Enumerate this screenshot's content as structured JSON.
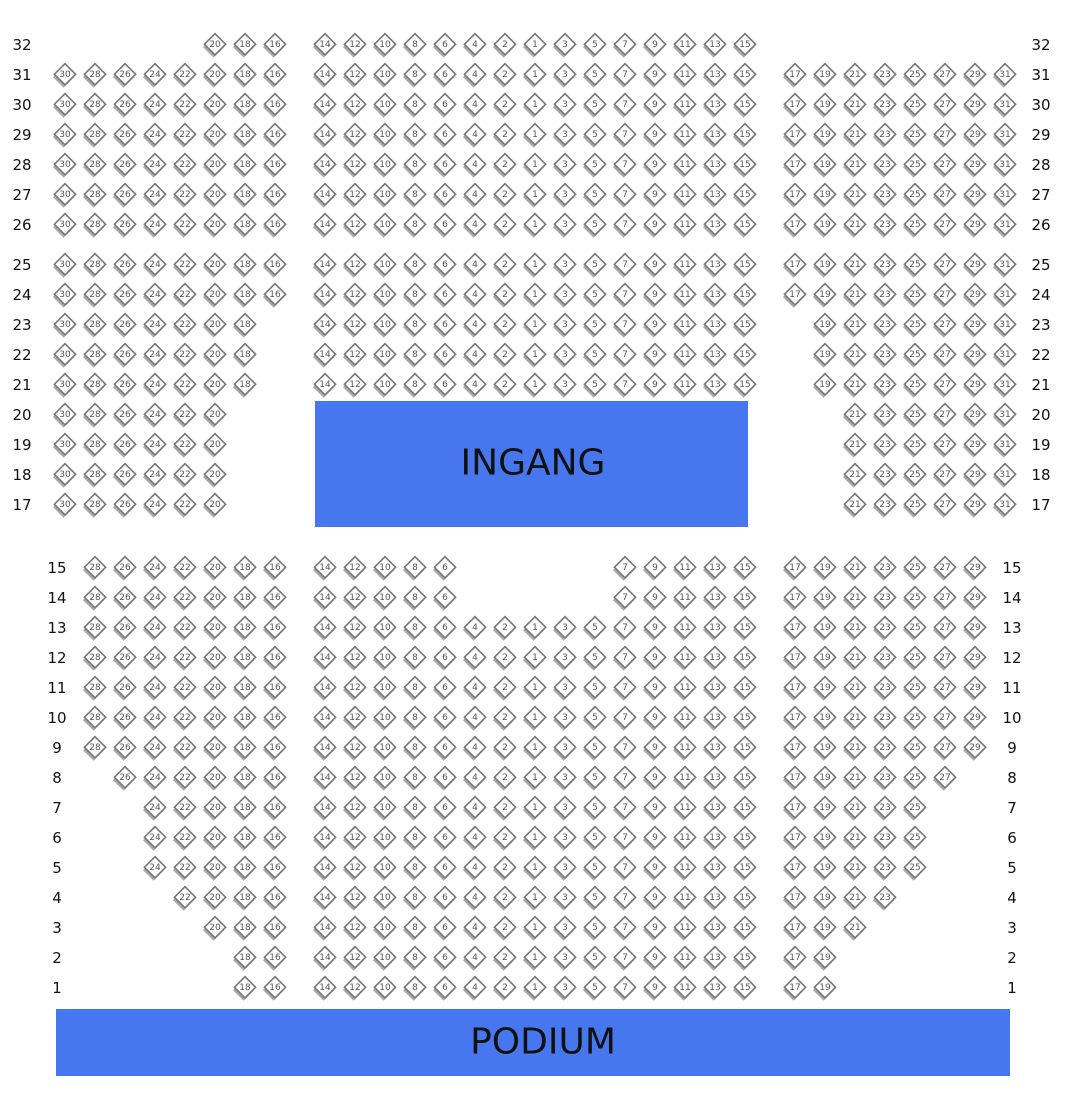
{
  "blocks": [
    {
      "rows": [
        {
          "label": "32",
          "left": [
            20,
            18,
            16
          ],
          "center": [
            14,
            12,
            10,
            8,
            6,
            4,
            2,
            1,
            3,
            5,
            7,
            9,
            11,
            13,
            15
          ],
          "right": []
        },
        {
          "label": "31",
          "left": [
            30,
            28,
            26,
            24,
            22,
            20,
            18,
            16
          ],
          "center": [
            14,
            12,
            10,
            8,
            6,
            4,
            2,
            1,
            3,
            5,
            7,
            9,
            11,
            13,
            15
          ],
          "right": [
            17,
            19,
            21,
            23,
            25,
            27,
            29,
            31
          ]
        },
        {
          "label": "30",
          "left": [
            30,
            28,
            26,
            24,
            22,
            20,
            18,
            16
          ],
          "center": [
            14,
            12,
            10,
            8,
            6,
            4,
            2,
            1,
            3,
            5,
            7,
            9,
            11,
            13,
            15
          ],
          "right": [
            17,
            19,
            21,
            23,
            25,
            27,
            29,
            31
          ]
        },
        {
          "label": "29",
          "left": [
            30,
            28,
            26,
            24,
            22,
            20,
            18,
            16
          ],
          "center": [
            14,
            12,
            10,
            8,
            6,
            4,
            2,
            1,
            3,
            5,
            7,
            9,
            11,
            13,
            15
          ],
          "right": [
            17,
            19,
            21,
            23,
            25,
            27,
            29,
            31
          ]
        },
        {
          "label": "28",
          "left": [
            30,
            28,
            26,
            24,
            22,
            20,
            18,
            16
          ],
          "center": [
            14,
            12,
            10,
            8,
            6,
            4,
            2,
            1,
            3,
            5,
            7,
            9,
            11,
            13,
            15
          ],
          "right": [
            17,
            19,
            21,
            23,
            25,
            27,
            29,
            31
          ]
        },
        {
          "label": "27",
          "left": [
            30,
            28,
            26,
            24,
            22,
            20,
            18,
            16
          ],
          "center": [
            14,
            12,
            10,
            8,
            6,
            4,
            2,
            1,
            3,
            5,
            7,
            9,
            11,
            13,
            15
          ],
          "right": [
            17,
            19,
            21,
            23,
            25,
            27,
            29,
            31
          ]
        },
        {
          "label": "26",
          "left": [
            30,
            28,
            26,
            24,
            22,
            20,
            18,
            16
          ],
          "center": [
            14,
            12,
            10,
            8,
            6,
            4,
            2,
            1,
            3,
            5,
            7,
            9,
            11,
            13,
            15
          ],
          "right": [
            17,
            19,
            21,
            23,
            25,
            27,
            29,
            31
          ]
        }
      ]
    },
    {
      "rows": [
        {
          "label": "25",
          "left": [
            30,
            28,
            26,
            24,
            22,
            20,
            18,
            16
          ],
          "center": [
            14,
            12,
            10,
            8,
            6,
            4,
            2,
            1,
            3,
            5,
            7,
            9,
            11,
            13,
            15
          ],
          "right": [
            17,
            19,
            21,
            23,
            25,
            27,
            29,
            31
          ]
        },
        {
          "label": "24",
          "left": [
            30,
            28,
            26,
            24,
            22,
            20,
            18,
            16
          ],
          "center": [
            14,
            12,
            10,
            8,
            6,
            4,
            2,
            1,
            3,
            5,
            7,
            9,
            11,
            13,
            15
          ],
          "right": [
            17,
            19,
            21,
            23,
            25,
            27,
            29,
            31
          ]
        },
        {
          "label": "23",
          "left": [
            30,
            28,
            26,
            24,
            22,
            20,
            18
          ],
          "center": [
            14,
            12,
            10,
            8,
            6,
            4,
            2,
            1,
            3,
            5,
            7,
            9,
            11,
            13,
            15
          ],
          "right": [
            19,
            21,
            23,
            25,
            27,
            29,
            31
          ]
        },
        {
          "label": "22",
          "left": [
            30,
            28,
            26,
            24,
            22,
            20,
            18
          ],
          "center": [
            14,
            12,
            10,
            8,
            6,
            4,
            2,
            1,
            3,
            5,
            7,
            9,
            11,
            13,
            15
          ],
          "right": [
            19,
            21,
            23,
            25,
            27,
            29,
            31
          ]
        },
        {
          "label": "21",
          "left": [
            30,
            28,
            26,
            24,
            22,
            20,
            18
          ],
          "center": [
            14,
            12,
            10,
            8,
            6,
            4,
            2,
            1,
            3,
            5,
            7,
            9,
            11,
            13,
            15
          ],
          "right": [
            19,
            21,
            23,
            25,
            27,
            29,
            31
          ]
        },
        {
          "label": "20",
          "left": [
            30,
            28,
            26,
            24,
            22,
            20
          ],
          "center": [],
          "right": [
            21,
            23,
            25,
            27,
            29,
            31
          ]
        },
        {
          "label": "19",
          "left": [
            30,
            28,
            26,
            24,
            22,
            20
          ],
          "center": [],
          "right": [
            21,
            23,
            25,
            27,
            29,
            31
          ]
        },
        {
          "label": "18",
          "left": [
            30,
            28,
            26,
            24,
            22,
            20
          ],
          "center": [],
          "right": [
            21,
            23,
            25,
            27,
            29,
            31
          ]
        },
        {
          "label": "17",
          "left": [
            30,
            28,
            26,
            24,
            22,
            20
          ],
          "center": [],
          "right": [
            21,
            23,
            25,
            27,
            29,
            31
          ]
        }
      ]
    },
    {
      "rows": [
        {
          "label": "15",
          "left": [
            28,
            26,
            24,
            22,
            20,
            18,
            16
          ],
          "center": [
            14,
            12,
            10,
            8,
            6,
            7,
            9,
            11,
            13,
            15
          ],
          "right": [
            17,
            19,
            21,
            23,
            25,
            27,
            29
          ]
        },
        {
          "label": "14",
          "left": [
            28,
            26,
            24,
            22,
            20,
            18,
            16
          ],
          "center": [
            14,
            12,
            10,
            8,
            6,
            7,
            9,
            11,
            13,
            15
          ],
          "right": [
            17,
            19,
            21,
            23,
            25,
            27,
            29
          ]
        },
        {
          "label": "13",
          "left": [
            28,
            26,
            24,
            22,
            20,
            18,
            16
          ],
          "center": [
            14,
            12,
            10,
            8,
            6,
            4,
            2,
            1,
            3,
            5,
            7,
            9,
            11,
            13,
            15
          ],
          "right": [
            17,
            19,
            21,
            23,
            25,
            27,
            29
          ]
        },
        {
          "label": "12",
          "left": [
            28,
            26,
            24,
            22,
            20,
            18,
            16
          ],
          "center": [
            14,
            12,
            10,
            8,
            6,
            4,
            2,
            1,
            3,
            5,
            7,
            9,
            11,
            13,
            15
          ],
          "right": [
            17,
            19,
            21,
            23,
            25,
            27,
            29
          ]
        },
        {
          "label": "11",
          "left": [
            28,
            26,
            24,
            22,
            20,
            18,
            16
          ],
          "center": [
            14,
            12,
            10,
            8,
            6,
            4,
            2,
            1,
            3,
            5,
            7,
            9,
            11,
            13,
            15
          ],
          "right": [
            17,
            19,
            21,
            23,
            25,
            27,
            29
          ]
        },
        {
          "label": "10",
          "left": [
            28,
            26,
            24,
            22,
            20,
            18,
            16
          ],
          "center": [
            14,
            12,
            10,
            8,
            6,
            4,
            2,
            1,
            3,
            5,
            7,
            9,
            11,
            13,
            15
          ],
          "right": [
            17,
            19,
            21,
            23,
            25,
            27,
            29
          ]
        },
        {
          "label": "9",
          "left": [
            28,
            26,
            24,
            22,
            20,
            18,
            16
          ],
          "center": [
            14,
            12,
            10,
            8,
            6,
            4,
            2,
            1,
            3,
            5,
            7,
            9,
            11,
            13,
            15
          ],
          "right": [
            17,
            19,
            21,
            23,
            25,
            27,
            29
          ]
        },
        {
          "label": "8",
          "left": [
            26,
            24,
            22,
            20,
            18,
            16
          ],
          "center": [
            14,
            12,
            10,
            8,
            6,
            4,
            2,
            1,
            3,
            5,
            7,
            9,
            11,
            13,
            15
          ],
          "right": [
            17,
            19,
            21,
            23,
            25,
            27
          ]
        },
        {
          "label": "7",
          "left": [
            24,
            22,
            20,
            18,
            16
          ],
          "center": [
            14,
            12,
            10,
            8,
            6,
            4,
            2,
            1,
            3,
            5,
            7,
            9,
            11,
            13,
            15
          ],
          "right": [
            17,
            19,
            21,
            23,
            25
          ]
        },
        {
          "label": "6",
          "left": [
            24,
            22,
            20,
            18,
            16
          ],
          "center": [
            14,
            12,
            10,
            8,
            6,
            4,
            2,
            1,
            3,
            5,
            7,
            9,
            11,
            13,
            15
          ],
          "right": [
            17,
            19,
            21,
            23,
            25
          ]
        },
        {
          "label": "5",
          "left": [
            24,
            22,
            20,
            18,
            16
          ],
          "center": [
            14,
            12,
            10,
            8,
            6,
            4,
            2,
            1,
            3,
            5,
            7,
            9,
            11,
            13,
            15
          ],
          "right": [
            17,
            19,
            21,
            23,
            25
          ]
        },
        {
          "label": "4",
          "left": [
            22,
            20,
            18,
            16
          ],
          "center": [
            14,
            12,
            10,
            8,
            6,
            4,
            2,
            1,
            3,
            5,
            7,
            9,
            11,
            13,
            15
          ],
          "right": [
            17,
            19,
            21,
            23
          ]
        },
        {
          "label": "3",
          "left": [
            20,
            18,
            16
          ],
          "center": [
            14,
            12,
            10,
            8,
            6,
            4,
            2,
            1,
            3,
            5,
            7,
            9,
            11,
            13,
            15
          ],
          "right": [
            17,
            19,
            21
          ]
        },
        {
          "label": "2",
          "left": [
            18,
            16
          ],
          "center": [
            14,
            12,
            10,
            8,
            6,
            4,
            2,
            1,
            3,
            5,
            7,
            9,
            11,
            13,
            15
          ],
          "right": [
            17,
            19
          ]
        },
        {
          "label": "1",
          "left": [
            18,
            16
          ],
          "center": [
            14,
            12,
            10,
            8,
            6,
            4,
            2,
            1,
            3,
            5,
            7,
            9,
            11,
            13,
            15
          ],
          "right": [
            17,
            19
          ]
        }
      ]
    }
  ],
  "entrance": "INGANG",
  "stage": "PODIUM"
}
